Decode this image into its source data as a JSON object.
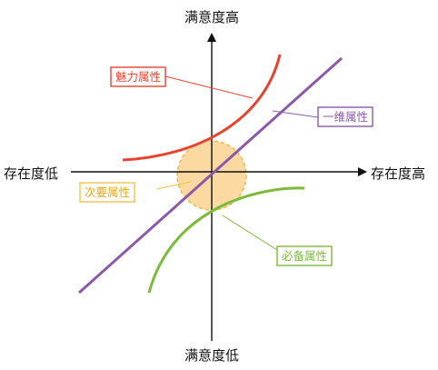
{
  "axes": {
    "y_top": "满意度高",
    "y_bottom": "满意度低",
    "x_left": "存在度低",
    "x_right": "存在度高"
  },
  "curves": {
    "attractive": {
      "label": "魅力属性",
      "color": "#e8432f"
    },
    "one_dimensional": {
      "label": "一维属性",
      "color": "#8a5aa8"
    },
    "indifferent": {
      "label": "次要属性",
      "color": "#f2c14e",
      "fill": "#fbd9a0"
    },
    "must_be": {
      "label": "必备属性",
      "color": "#7cba3b"
    }
  },
  "colors": {
    "axis": "#111111",
    "leader_line": "#f2c14e"
  }
}
